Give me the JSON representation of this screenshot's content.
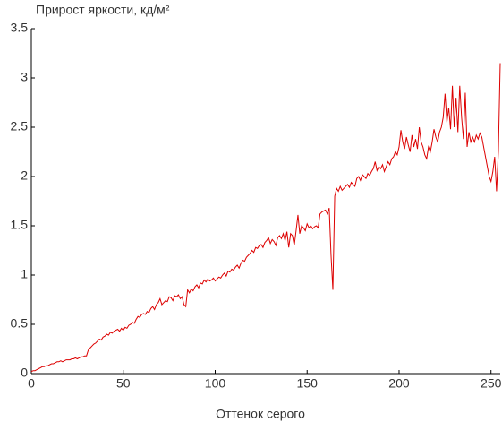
{
  "chart_data": {
    "type": "line",
    "title": "Прирост яркости, кд/м²",
    "xlabel": "Оттенок серого",
    "x": [
      0,
      1,
      2,
      3,
      4,
      5,
      6,
      7,
      8,
      9,
      10,
      11,
      12,
      13,
      14,
      15,
      16,
      17,
      18,
      19,
      20,
      21,
      22,
      23,
      24,
      25,
      26,
      27,
      28,
      29,
      30,
      31,
      32,
      33,
      34,
      35,
      36,
      37,
      38,
      39,
      40,
      41,
      42,
      43,
      44,
      45,
      46,
      47,
      48,
      49,
      50,
      51,
      52,
      53,
      54,
      55,
      56,
      57,
      58,
      59,
      60,
      61,
      62,
      63,
      64,
      65,
      66,
      67,
      68,
      69,
      70,
      71,
      72,
      73,
      74,
      75,
      76,
      77,
      78,
      79,
      80,
      81,
      82,
      83,
      84,
      85,
      86,
      87,
      88,
      89,
      90,
      91,
      92,
      93,
      94,
      95,
      96,
      97,
      98,
      99,
      100,
      101,
      102,
      103,
      104,
      105,
      106,
      107,
      108,
      109,
      110,
      111,
      112,
      113,
      114,
      115,
      116,
      117,
      118,
      119,
      120,
      121,
      122,
      123,
      124,
      125,
      126,
      127,
      128,
      129,
      130,
      131,
      132,
      133,
      134,
      135,
      136,
      137,
      138,
      139,
      140,
      141,
      142,
      143,
      144,
      145,
      146,
      147,
      148,
      149,
      150,
      151,
      152,
      153,
      154,
      155,
      156,
      157,
      158,
      159,
      160,
      161,
      162,
      163,
      164,
      165,
      166,
      167,
      168,
      169,
      170,
      171,
      172,
      173,
      174,
      175,
      176,
      177,
      178,
      179,
      180,
      181,
      182,
      183,
      184,
      185,
      186,
      187,
      188,
      189,
      190,
      191,
      192,
      193,
      194,
      195,
      196,
      197,
      198,
      199,
      200,
      201,
      202,
      203,
      204,
      205,
      206,
      207,
      208,
      209,
      210,
      211,
      212,
      213,
      214,
      215,
      216,
      217,
      218,
      219,
      220,
      221,
      222,
      223,
      224,
      225,
      226,
      227,
      228,
      229,
      230,
      231,
      232,
      233,
      234,
      235,
      236,
      237,
      238,
      239,
      240,
      241,
      242,
      243,
      244,
      245,
      246,
      247,
      248,
      249,
      250,
      251,
      252,
      253,
      254,
      255
    ],
    "series": [
      {
        "color": "#dd0000",
        "values": [
          0.02,
          0.03,
          0.03,
          0.04,
          0.05,
          0.06,
          0.07,
          0.07,
          0.08,
          0.08,
          0.09,
          0.1,
          0.1,
          0.11,
          0.12,
          0.12,
          0.13,
          0.12,
          0.13,
          0.14,
          0.14,
          0.14,
          0.15,
          0.15,
          0.16,
          0.15,
          0.16,
          0.17,
          0.17,
          0.18,
          0.18,
          0.24,
          0.26,
          0.28,
          0.3,
          0.31,
          0.33,
          0.35,
          0.34,
          0.37,
          0.38,
          0.4,
          0.39,
          0.42,
          0.41,
          0.43,
          0.44,
          0.45,
          0.43,
          0.46,
          0.44,
          0.47,
          0.46,
          0.49,
          0.5,
          0.52,
          0.51,
          0.55,
          0.58,
          0.57,
          0.6,
          0.61,
          0.6,
          0.63,
          0.62,
          0.66,
          0.68,
          0.65,
          0.7,
          0.72,
          0.76,
          0.7,
          0.72,
          0.74,
          0.73,
          0.78,
          0.77,
          0.74,
          0.79,
          0.78,
          0.8,
          0.76,
          0.78,
          0.7,
          0.68,
          0.85,
          0.82,
          0.86,
          0.84,
          0.88,
          0.9,
          0.87,
          0.92,
          0.91,
          0.95,
          0.93,
          0.96,
          0.94,
          0.95,
          0.97,
          0.94,
          0.96,
          0.98,
          0.97,
          1.0,
          1.02,
          0.99,
          1.04,
          1.03,
          1.06,
          1.05,
          1.08,
          1.1,
          1.07,
          1.12,
          1.15,
          1.14,
          1.18,
          1.2,
          1.22,
          1.25,
          1.23,
          1.28,
          1.27,
          1.3,
          1.31,
          1.28,
          1.33,
          1.35,
          1.38,
          1.32,
          1.36,
          1.34,
          1.3,
          1.38,
          1.4,
          1.37,
          1.42,
          1.35,
          1.44,
          1.28,
          1.42,
          1.4,
          1.3,
          1.45,
          1.61,
          1.42,
          1.5,
          1.48,
          1.45,
          1.52,
          1.48,
          1.5,
          1.47,
          1.49,
          1.5,
          1.48,
          1.62,
          1.64,
          1.65,
          1.66,
          1.62,
          1.68,
          1.2,
          0.85,
          1.8,
          1.88,
          1.85,
          1.9,
          1.86,
          1.88,
          1.9,
          1.92,
          1.89,
          1.94,
          1.92,
          1.9,
          1.98,
          2.0,
          1.96,
          2.02,
          2.0,
          1.98,
          2.03,
          2.01,
          2.05,
          2.08,
          2.15,
          2.06,
          2.1,
          2.08,
          2.12,
          2.05,
          2.1,
          2.15,
          2.12,
          2.18,
          2.2,
          2.25,
          2.22,
          2.3,
          2.47,
          2.35,
          2.28,
          2.4,
          2.32,
          2.25,
          2.42,
          2.3,
          2.38,
          2.28,
          2.5,
          2.35,
          2.3,
          2.22,
          2.18,
          2.3,
          2.25,
          2.35,
          2.48,
          2.4,
          2.35,
          2.45,
          2.5,
          2.6,
          2.84,
          2.55,
          2.7,
          2.48,
          2.92,
          2.5,
          2.8,
          2.45,
          2.92,
          2.6,
          2.38,
          2.85,
          2.3,
          2.45,
          2.35,
          2.4,
          2.35,
          2.42,
          2.38,
          2.44,
          2.4,
          2.3,
          2.2,
          2.1,
          2.0,
          1.95,
          2.05,
          2.2,
          1.85,
          2.25,
          3.15
        ]
      }
    ],
    "xlim": [
      0,
      255
    ],
    "xticks": [
      0,
      50,
      100,
      150,
      200,
      250
    ],
    "ylim": [
      0,
      3.5
    ],
    "yticks": [
      0,
      0.5,
      1,
      1.5,
      2,
      2.5,
      3,
      3.5
    ]
  }
}
